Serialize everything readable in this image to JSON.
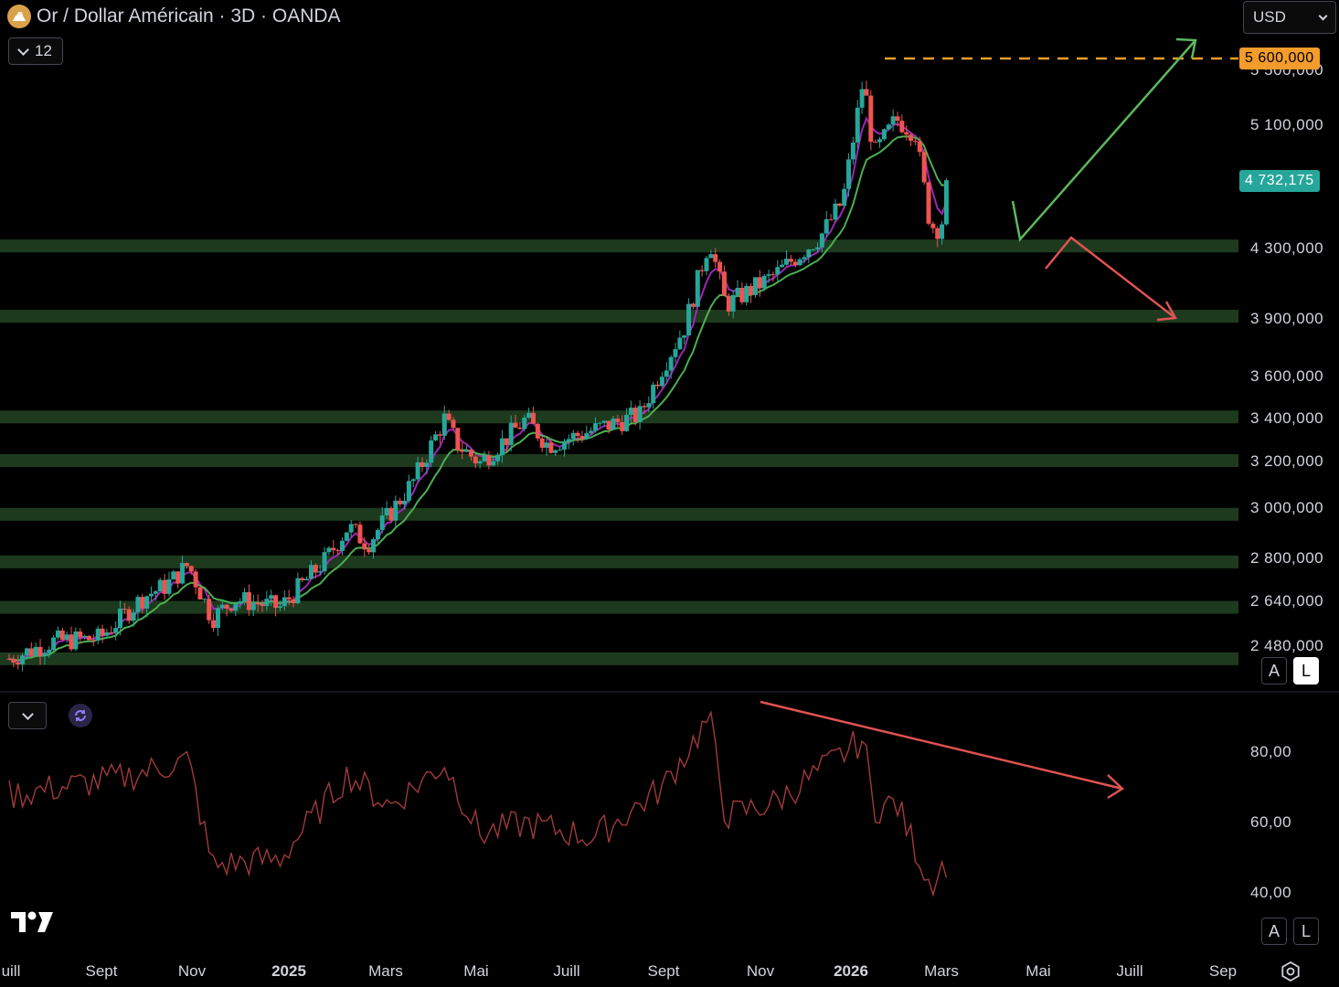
{
  "header": {
    "title": "Or / Dollar Américain · 3D · OANDA",
    "indicator_count": "12",
    "currency": "USD"
  },
  "labels": {
    "target_price": "5 600,000",
    "current_price": "4 732,175"
  },
  "price_axis": {
    "ticks": [
      {
        "value": 5500000,
        "label": "5 500,000"
      },
      {
        "value": 5100000,
        "label": "5 100,000"
      },
      {
        "value": 4300000,
        "label": "4 300,000"
      },
      {
        "value": 3900000,
        "label": "3 900,000"
      },
      {
        "value": 3600000,
        "label": "3 600,000"
      },
      {
        "value": 3400000,
        "label": "3 400,000"
      },
      {
        "value": 3200000,
        "label": "3 200,000"
      },
      {
        "value": 3000000,
        "label": "3 000,000"
      },
      {
        "value": 2800000,
        "label": "2 800,000"
      },
      {
        "value": 2640000,
        "label": "2 640,000"
      },
      {
        "value": 2480000,
        "label": "2 480,000"
      }
    ]
  },
  "rsi_axis": {
    "ticks": [
      {
        "value": 80,
        "label": "80,00"
      },
      {
        "value": 60,
        "label": "60,00"
      },
      {
        "value": 40,
        "label": "40,00"
      }
    ]
  },
  "time_axis": [
    {
      "label": "uill",
      "bold": false
    },
    {
      "label": "Sept",
      "bold": false
    },
    {
      "label": "Nov",
      "bold": false
    },
    {
      "label": "2025",
      "bold": true
    },
    {
      "label": "Mars",
      "bold": false
    },
    {
      "label": "Mai",
      "bold": false
    },
    {
      "label": "Juill",
      "bold": false
    },
    {
      "label": "Sept",
      "bold": false
    },
    {
      "label": "Nov",
      "bold": false
    },
    {
      "label": "2026",
      "bold": true
    },
    {
      "label": "Mars",
      "bold": false
    },
    {
      "label": "Mai",
      "bold": false
    },
    {
      "label": "Juill",
      "bold": false
    },
    {
      "label": "Sep",
      "bold": false
    }
  ],
  "scale_buttons": {
    "auto": "A",
    "log": "L"
  },
  "colors": {
    "up": "#26a69a",
    "down": "#ef5350",
    "ema_fast": "#9c27b0",
    "ema_slow": "#4caf50",
    "zone": "#1e3a1e",
    "rsi": "#a13a3a",
    "target": "#f39c2b",
    "bull_arrow": "#5cb85c",
    "bear_arrow": "#e05252"
  },
  "chart_data": {
    "type": "candlestick",
    "symbol": "Or / Dollar Américain · 3D · OANDA",
    "log_scale": true,
    "y_range": [
      2400000,
      5800000
    ],
    "x_range": [
      "2024-07-01",
      "2026-09-30"
    ],
    "closes": [
      [
        "2024-07-01",
        2440000
      ],
      [
        "2024-07-31",
        2500000
      ],
      [
        "2024-08-31",
        2510000
      ],
      [
        "2024-09-30",
        2660000
      ],
      [
        "2024-10-15",
        2700000
      ],
      [
        "2024-10-30",
        2780000
      ],
      [
        "2024-11-15",
        2580000
      ],
      [
        "2024-11-30",
        2650000
      ],
      [
        "2024-12-31",
        2620000
      ],
      [
        "2025-01-31",
        2800000
      ],
      [
        "2025-02-15",
        2930000
      ],
      [
        "2025-02-28",
        2860000
      ],
      [
        "2025-03-31",
        3120000
      ],
      [
        "2025-04-21",
        3400000
      ],
      [
        "2025-04-30",
        3280000
      ],
      [
        "2025-05-15",
        3200000
      ],
      [
        "2025-05-31",
        3300000
      ],
      [
        "2025-06-15",
        3400000
      ],
      [
        "2025-06-30",
        3280000
      ],
      [
        "2025-07-31",
        3350000
      ],
      [
        "2025-08-31",
        3420000
      ],
      [
        "2025-09-15",
        3650000
      ],
      [
        "2025-09-30",
        3860000
      ],
      [
        "2025-10-17",
        4360000
      ],
      [
        "2025-10-28",
        3980000
      ],
      [
        "2025-11-30",
        4150000
      ],
      [
        "2025-12-31",
        4380000
      ],
      [
        "2026-01-15",
        4600000
      ],
      [
        "2026-01-29",
        5450000
      ],
      [
        "2026-02-05",
        4900000
      ],
      [
        "2026-02-20",
        5150000
      ],
      [
        "2026-03-05",
        5050000
      ],
      [
        "2026-03-15",
        4450000
      ],
      [
        "2026-03-22",
        4420000
      ],
      [
        "2026-03-28",
        4732175
      ]
    ],
    "rsi_closes": [
      [
        "2024-07-01",
        68
      ],
      [
        "2024-09-15",
        73
      ],
      [
        "2024-10-30",
        78
      ],
      [
        "2024-11-15",
        48
      ],
      [
        "2024-12-31",
        50
      ],
      [
        "2025-02-15",
        74
      ],
      [
        "2025-03-15",
        65
      ],
      [
        "2025-04-21",
        77
      ],
      [
        "2025-05-15",
        57
      ],
      [
        "2025-06-15",
        60
      ],
      [
        "2025-07-31",
        56
      ],
      [
        "2025-09-15",
        70
      ],
      [
        "2025-10-17",
        90
      ],
      [
        "2025-10-28",
        62
      ],
      [
        "2025-11-30",
        66
      ],
      [
        "2025-12-31",
        75
      ],
      [
        "2026-01-29",
        84
      ],
      [
        "2026-02-05",
        64
      ],
      [
        "2026-02-20",
        66
      ],
      [
        "2026-03-15",
        43
      ],
      [
        "2026-03-28",
        50
      ]
    ],
    "support_zones": [
      4320000,
      3920000,
      3410000,
      3210000,
      2980000,
      2790000,
      2620000,
      2440000
    ],
    "target": 5600000,
    "current": 4732175
  }
}
